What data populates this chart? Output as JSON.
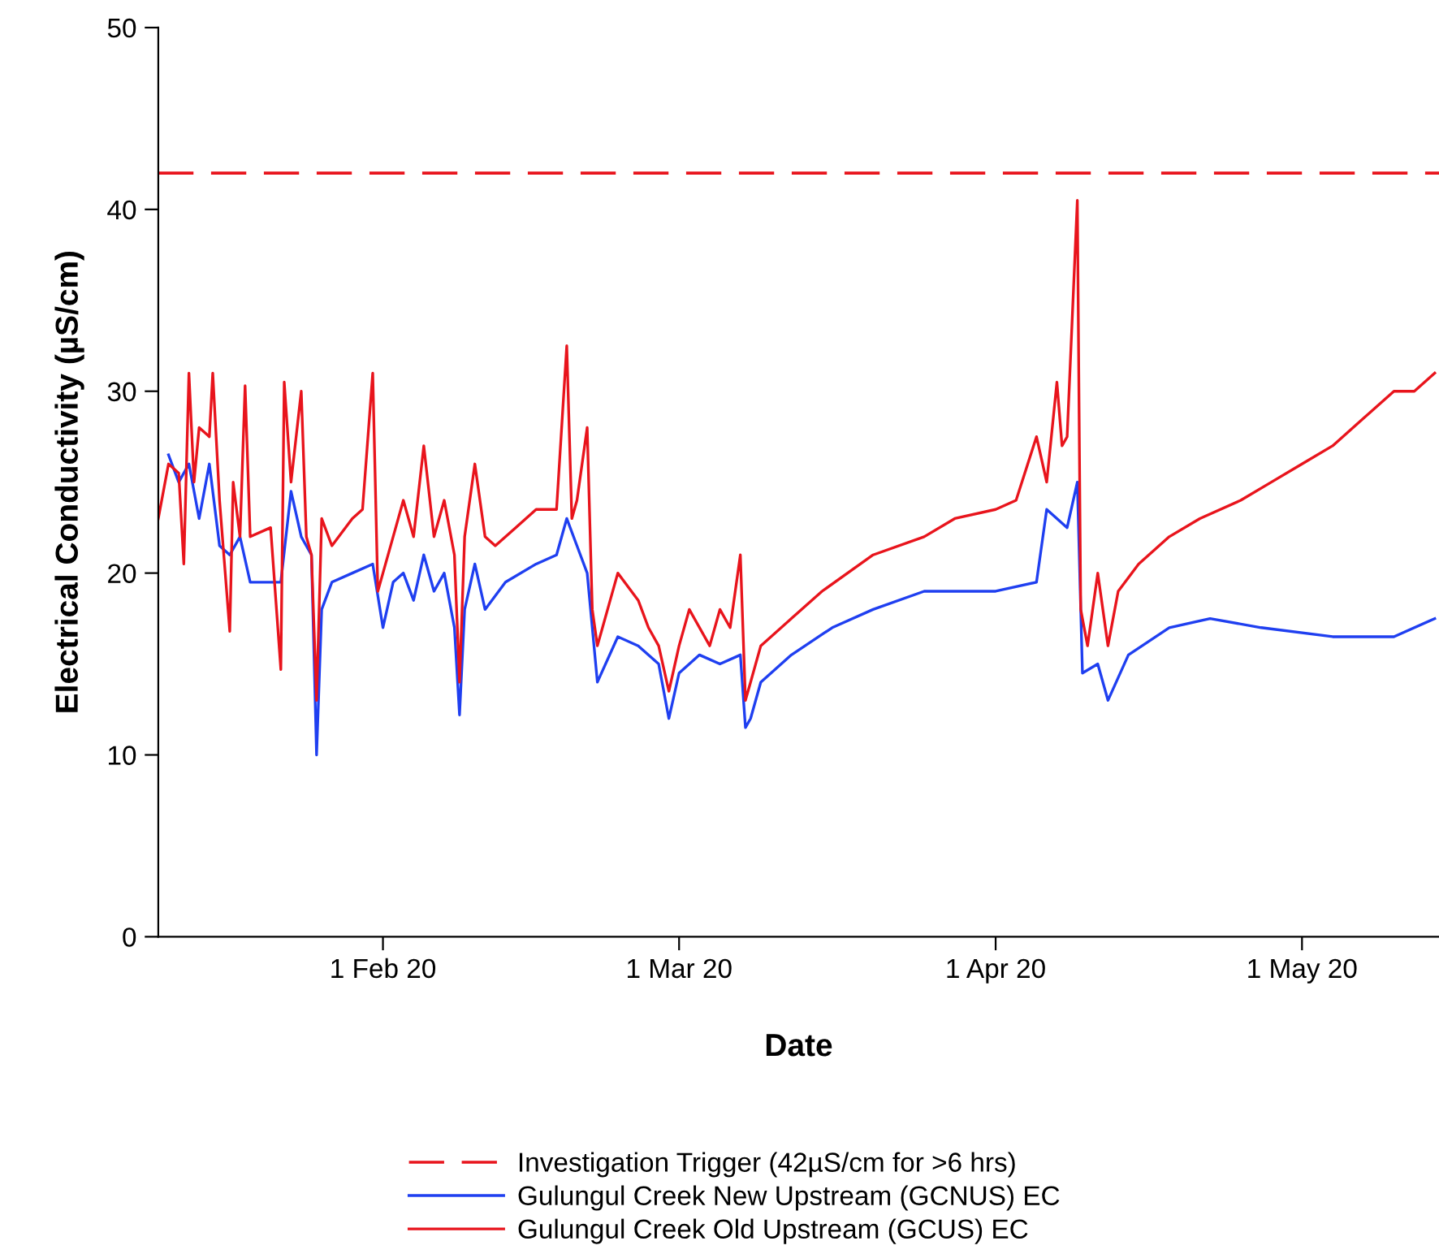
{
  "chart_data": {
    "type": "line",
    "xlabel": "Date",
    "ylabel": "Electrical Conductivity (µS/cm)",
    "xlim": [
      "2020-01-10",
      "2020-05-14T10:00"
    ],
    "xticks": [
      {
        "value": "2020-02-01",
        "label": "1 Feb 20"
      },
      {
        "value": "2020-03-01",
        "label": "1 Mar 20"
      },
      {
        "value": "2020-04-01",
        "label": "1 Apr 20"
      },
      {
        "value": "2020-05-01",
        "label": "1 May 20"
      }
    ],
    "ylim": [
      0,
      50
    ],
    "yticks": [
      0,
      10,
      20,
      30,
      40,
      50
    ],
    "grid": false,
    "legend": "bottom",
    "marker": "none",
    "ref_lines": [
      {
        "axis": "y",
        "value": 42,
        "label": "Investigation Trigger (42µS/cm for >6 hrs)",
        "color": "#e8141c",
        "line_style": "dashed"
      }
    ],
    "series": [
      {
        "name": "Gulungul Creek New Upstream (GCNUS) EC",
        "color": "#1f3ff0",
        "line_style": "solid",
        "x": [
          "2020-01-11",
          "2020-01-12",
          "2020-01-13",
          "2020-01-14",
          "2020-01-15",
          "2020-01-16",
          "2020-01-17",
          "2020-01-18",
          "2020-01-19",
          "2020-01-20",
          "2020-01-22",
          "2020-01-23",
          "2020-01-24",
          "2020-01-25",
          "2020-01-25T12:00",
          "2020-01-26",
          "2020-01-27",
          "2020-01-29",
          "2020-01-31",
          "2020-02-01",
          "2020-02-02",
          "2020-02-03",
          "2020-02-04",
          "2020-02-05",
          "2020-02-06",
          "2020-02-07",
          "2020-02-08",
          "2020-02-08T12:00",
          "2020-02-09",
          "2020-02-10",
          "2020-02-11",
          "2020-02-13",
          "2020-02-16",
          "2020-02-18",
          "2020-02-19",
          "2020-02-20",
          "2020-02-21",
          "2020-02-22",
          "2020-02-24",
          "2020-02-26",
          "2020-02-28",
          "2020-02-29",
          "2020-03-01",
          "2020-03-03",
          "2020-03-05",
          "2020-03-07",
          "2020-03-07T12:00",
          "2020-03-08",
          "2020-03-09",
          "2020-03-12",
          "2020-03-16",
          "2020-03-20",
          "2020-03-25",
          "2020-04-01",
          "2020-04-05",
          "2020-04-06",
          "2020-04-08",
          "2020-04-09",
          "2020-04-09T12:00",
          "2020-04-11",
          "2020-04-12",
          "2020-04-14",
          "2020-04-18",
          "2020-04-22",
          "2020-04-27",
          "2020-05-04",
          "2020-05-10",
          "2020-05-14"
        ],
        "values": [
          26.5,
          25,
          26,
          23,
          26,
          21.5,
          21,
          22,
          19.5,
          19.5,
          19.5,
          24.5,
          22,
          21,
          10,
          18,
          19.5,
          20,
          20.5,
          17,
          19.5,
          20,
          18.5,
          21,
          19,
          20,
          17,
          12.2,
          18,
          20.5,
          18,
          19.5,
          20.5,
          21,
          23,
          21.5,
          20,
          14,
          16.5,
          16,
          15,
          12,
          14.5,
          15.5,
          15,
          15.5,
          11.5,
          12,
          14,
          15.5,
          17,
          18,
          19,
          19,
          19.5,
          23.5,
          22.5,
          25,
          14.5,
          15,
          13,
          15.5,
          17,
          17.5,
          17,
          16.5,
          16.5,
          17.5
        ]
      },
      {
        "name": "Gulungul Creek Old Upstream (GCUS) EC",
        "color": "#e8141c",
        "line_style": "solid",
        "x": [
          "2020-01-10",
          "2020-01-11",
          "2020-01-12",
          "2020-01-12T12:00",
          "2020-01-13",
          "2020-01-13T12:00",
          "2020-01-14",
          "2020-01-15",
          "2020-01-15T08:00",
          "2020-01-16",
          "2020-01-17",
          "2020-01-17T08:00",
          "2020-01-18",
          "2020-01-18T12:00",
          "2020-01-19",
          "2020-01-21",
          "2020-01-22",
          "2020-01-22T08:00",
          "2020-01-23",
          "2020-01-24",
          "2020-01-24T12:00",
          "2020-01-25",
          "2020-01-25T12:00",
          "2020-01-26",
          "2020-01-27",
          "2020-01-29",
          "2020-01-30",
          "2020-01-31",
          "2020-01-31T12:00",
          "2020-02-01",
          "2020-02-02",
          "2020-02-03",
          "2020-02-04",
          "2020-02-05",
          "2020-02-06",
          "2020-02-07",
          "2020-02-08",
          "2020-02-08T12:00",
          "2020-02-09",
          "2020-02-10",
          "2020-02-11",
          "2020-02-12",
          "2020-02-14",
          "2020-02-16",
          "2020-02-18",
          "2020-02-19",
          "2020-02-19T12:00",
          "2020-02-20",
          "2020-02-21",
          "2020-02-21T12:00",
          "2020-02-22",
          "2020-02-23",
          "2020-02-24",
          "2020-02-26",
          "2020-02-27",
          "2020-02-28",
          "2020-02-29",
          "2020-03-01",
          "2020-03-02",
          "2020-03-04",
          "2020-03-05",
          "2020-03-06",
          "2020-03-07",
          "2020-03-07T12:00",
          "2020-03-08",
          "2020-03-09",
          "2020-03-12",
          "2020-03-15",
          "2020-03-20",
          "2020-03-25",
          "2020-03-28",
          "2020-04-01",
          "2020-04-03",
          "2020-04-05",
          "2020-04-06",
          "2020-04-07",
          "2020-04-07T12:00",
          "2020-04-08",
          "2020-04-09",
          "2020-04-09T08:00",
          "2020-04-10",
          "2020-04-11",
          "2020-04-12",
          "2020-04-13",
          "2020-04-15",
          "2020-04-18",
          "2020-04-21",
          "2020-04-25",
          "2020-04-28",
          "2020-05-01",
          "2020-05-04",
          "2020-05-07",
          "2020-05-10",
          "2020-05-12",
          "2020-05-14"
        ],
        "values": [
          23,
          26,
          25.5,
          20.5,
          31,
          25,
          28,
          27.5,
          31,
          24,
          16.8,
          25,
          22,
          30.3,
          22,
          22.5,
          14.7,
          30.5,
          25,
          30,
          22,
          21,
          13,
          23,
          21.5,
          23,
          23.5,
          31,
          19,
          20,
          22,
          24,
          22,
          27,
          22,
          24,
          21,
          14,
          22,
          26,
          22,
          21.5,
          22.5,
          23.5,
          23.5,
          32.5,
          23,
          24,
          28,
          18,
          16,
          18,
          20,
          18.5,
          17,
          16,
          13.5,
          16,
          18,
          16,
          18,
          17,
          21,
          13,
          14,
          16,
          17.5,
          19,
          21,
          22,
          23,
          23.5,
          24,
          27.5,
          25,
          30.5,
          27,
          27.5,
          40.5,
          18,
          16,
          20,
          16,
          19,
          20.5,
          22,
          23,
          24,
          25,
          26,
          27,
          28.5,
          30,
          30,
          31
        ]
      }
    ]
  }
}
